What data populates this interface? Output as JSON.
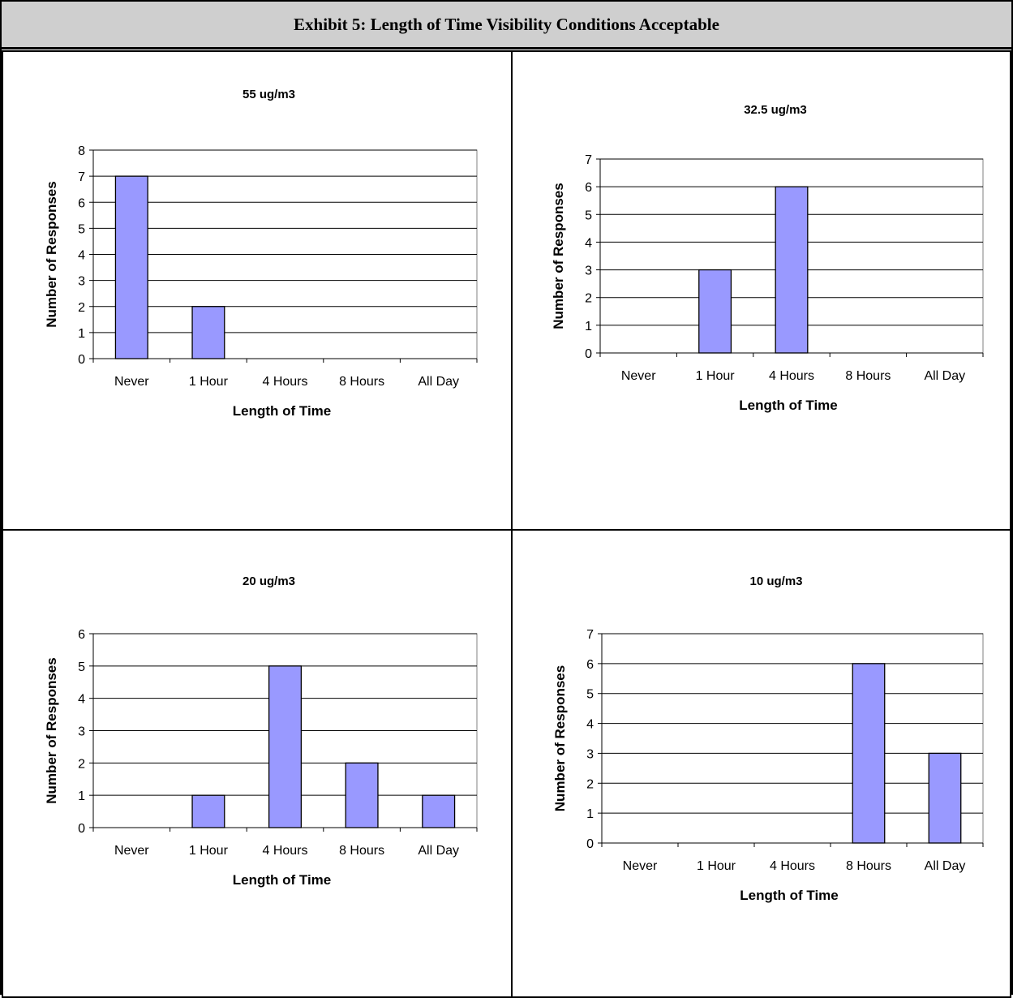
{
  "exhibit": {
    "title": "Exhibit 5: Length of Time Visibility Conditions Acceptable"
  },
  "colors": {
    "bar_fill": "#9999ff",
    "bar_stroke": "#000000",
    "grid": "#000000",
    "header_bg": "#cfcfcf"
  },
  "chart_data": [
    {
      "type": "bar",
      "title": "55 ug/m3",
      "xlabel": "Length of Time",
      "ylabel": "Number of Responses",
      "categories": [
        "Never",
        "1 Hour",
        "4 Hours",
        "8 Hours",
        "All Day"
      ],
      "values": [
        7,
        2,
        0,
        0,
        0
      ],
      "ylim": [
        0,
        8
      ],
      "yticks": [
        0,
        1,
        2,
        3,
        4,
        5,
        6,
        7,
        8
      ],
      "grid": true,
      "legend": "none"
    },
    {
      "type": "bar",
      "title": "32.5 ug/m3",
      "xlabel": "Length of Time",
      "ylabel": "Number of Responses",
      "categories": [
        "Never",
        "1 Hour",
        "4 Hours",
        "8 Hours",
        "All Day"
      ],
      "values": [
        0,
        3,
        6,
        0,
        0
      ],
      "ylim": [
        0,
        7
      ],
      "yticks": [
        0,
        1,
        2,
        3,
        4,
        5,
        6,
        7
      ],
      "grid": true,
      "legend": "none"
    },
    {
      "type": "bar",
      "title": "20 ug/m3",
      "xlabel": "Length of Time",
      "ylabel": "Number of Responses",
      "categories": [
        "Never",
        "1 Hour",
        "4 Hours",
        "8 Hours",
        "All Day"
      ],
      "values": [
        0,
        1,
        5,
        2,
        1
      ],
      "ylim": [
        0,
        6
      ],
      "yticks": [
        0,
        1,
        2,
        3,
        4,
        5,
        6
      ],
      "grid": true,
      "legend": "none"
    },
    {
      "type": "bar",
      "title": "10 ug/m3",
      "xlabel": "Length of Time",
      "ylabel": "Number of Responses",
      "categories": [
        "Never",
        "1 Hour",
        "4 Hours",
        "8 Hours",
        "All Day"
      ],
      "values": [
        0,
        0,
        0,
        6,
        3
      ],
      "ylim": [
        0,
        7
      ],
      "yticks": [
        0,
        1,
        2,
        3,
        4,
        5,
        6,
        7
      ],
      "grid": true,
      "legend": "none"
    }
  ]
}
